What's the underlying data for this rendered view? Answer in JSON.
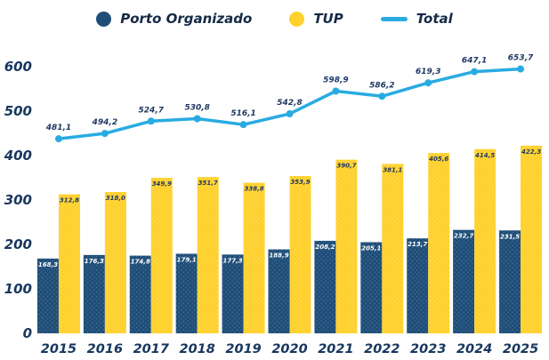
{
  "legend": [
    {
      "label": "Porto Organizado",
      "color": "#1F4E79",
      "swatch": "circle"
    },
    {
      "label": "TUP",
      "color": "#FFD12E",
      "swatch": "circle"
    },
    {
      "label": "Total",
      "color": "#29ABE2",
      "swatch": "line"
    }
  ],
  "chart_data": {
    "type": "bar+line",
    "title": "",
    "xlabel": "",
    "ylabel": "",
    "categories": [
      "2015",
      "2016",
      "2017",
      "2018",
      "2019",
      "2020",
      "2021",
      "2022",
      "2023",
      "2024",
      "2025"
    ],
    "series": [
      {
        "name": "Porto Organizado",
        "type": "bar",
        "color": "#1F4E79",
        "values": [
          168.3,
          176.3,
          174.8,
          179.1,
          177.3,
          188.9,
          208.2,
          205.1,
          213.7,
          232.7,
          231.5
        ],
        "data_labels": [
          "168,3",
          "176,3",
          "174,8",
          "179,1",
          "177,3",
          "188,9",
          "208,2",
          "205,1",
          "213,7",
          "232,7",
          "231,5"
        ]
      },
      {
        "name": "TUP",
        "type": "bar",
        "color": "#FFD12E",
        "values": [
          312.8,
          318.0,
          349.9,
          351.7,
          338.8,
          353.9,
          390.7,
          381.1,
          405.6,
          414.5,
          422.3
        ],
        "data_labels": [
          "312,8",
          "318,0",
          "349,9",
          "351,7",
          "338,8",
          "353,9",
          "390,7",
          "381,1",
          "405,6",
          "414,5",
          "422,3"
        ]
      },
      {
        "name": "Total",
        "type": "line",
        "color": "#29ABE2",
        "values": [
          481.1,
          494.2,
          524.7,
          530.8,
          516.1,
          542.8,
          598.9,
          586.2,
          619.3,
          647.1,
          653.7
        ],
        "data_labels": [
          "481,1",
          "494,2",
          "524,7",
          "530,8",
          "516,1",
          "542,8",
          "598,9",
          "586,2",
          "619,3",
          "647,1",
          "653,7"
        ]
      }
    ],
    "yticks": [
      0,
      100,
      200,
      300,
      400,
      500,
      600
    ],
    "ylim": [
      0,
      600
    ],
    "grid": false,
    "axis_lines": false,
    "legend_position": "top",
    "decimal_separator": ","
  }
}
